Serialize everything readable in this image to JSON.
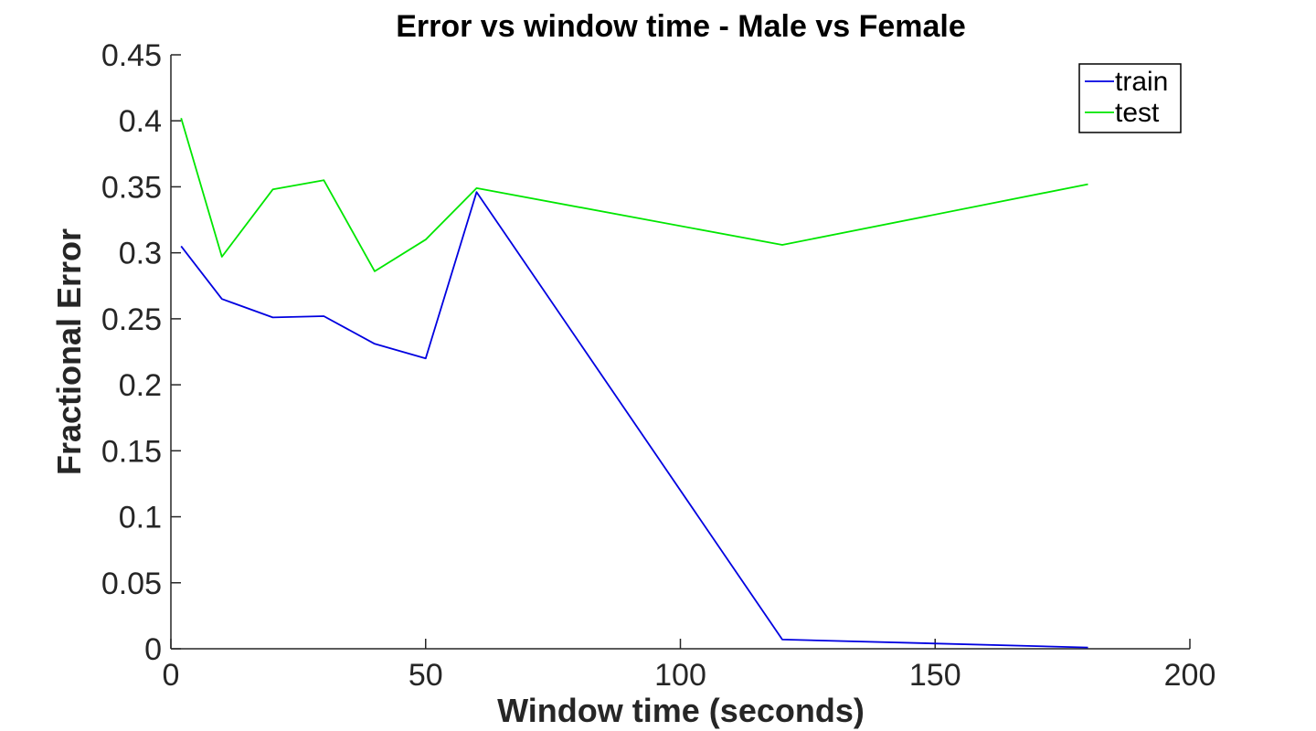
{
  "chart_data": {
    "type": "line",
    "title": "Error vs window time - Male vs Female",
    "xlabel": "Window time (seconds)",
    "ylabel": "Fractional Error",
    "xlim": [
      0,
      200
    ],
    "ylim": [
      0,
      0.45
    ],
    "xticks": [
      0,
      50,
      100,
      150,
      200
    ],
    "xtick_labels": [
      "0",
      "50",
      "100",
      "150",
      "200"
    ],
    "yticks": [
      0,
      0.05,
      0.1,
      0.15,
      0.2,
      0.25,
      0.3,
      0.35,
      0.4,
      0.45
    ],
    "ytick_labels": [
      "0",
      "0.05",
      "0.1",
      "0.15",
      "0.2",
      "0.25",
      "0.3",
      "0.35",
      "0.4",
      "0.45"
    ],
    "grid": false,
    "legend_position": "top-right",
    "series": [
      {
        "name": "train",
        "color": "#0000e0",
        "x": [
          2,
          10,
          20,
          30,
          40,
          50,
          60,
          120,
          180
        ],
        "y": [
          0.305,
          0.265,
          0.251,
          0.252,
          0.231,
          0.22,
          0.346,
          0.007,
          0.001
        ]
      },
      {
        "name": "test",
        "color": "#00e600",
        "x": [
          2,
          10,
          20,
          30,
          40,
          50,
          60,
          120,
          180
        ],
        "y": [
          0.402,
          0.297,
          0.348,
          0.355,
          0.286,
          0.31,
          0.349,
          0.306,
          0.352
        ]
      }
    ]
  }
}
